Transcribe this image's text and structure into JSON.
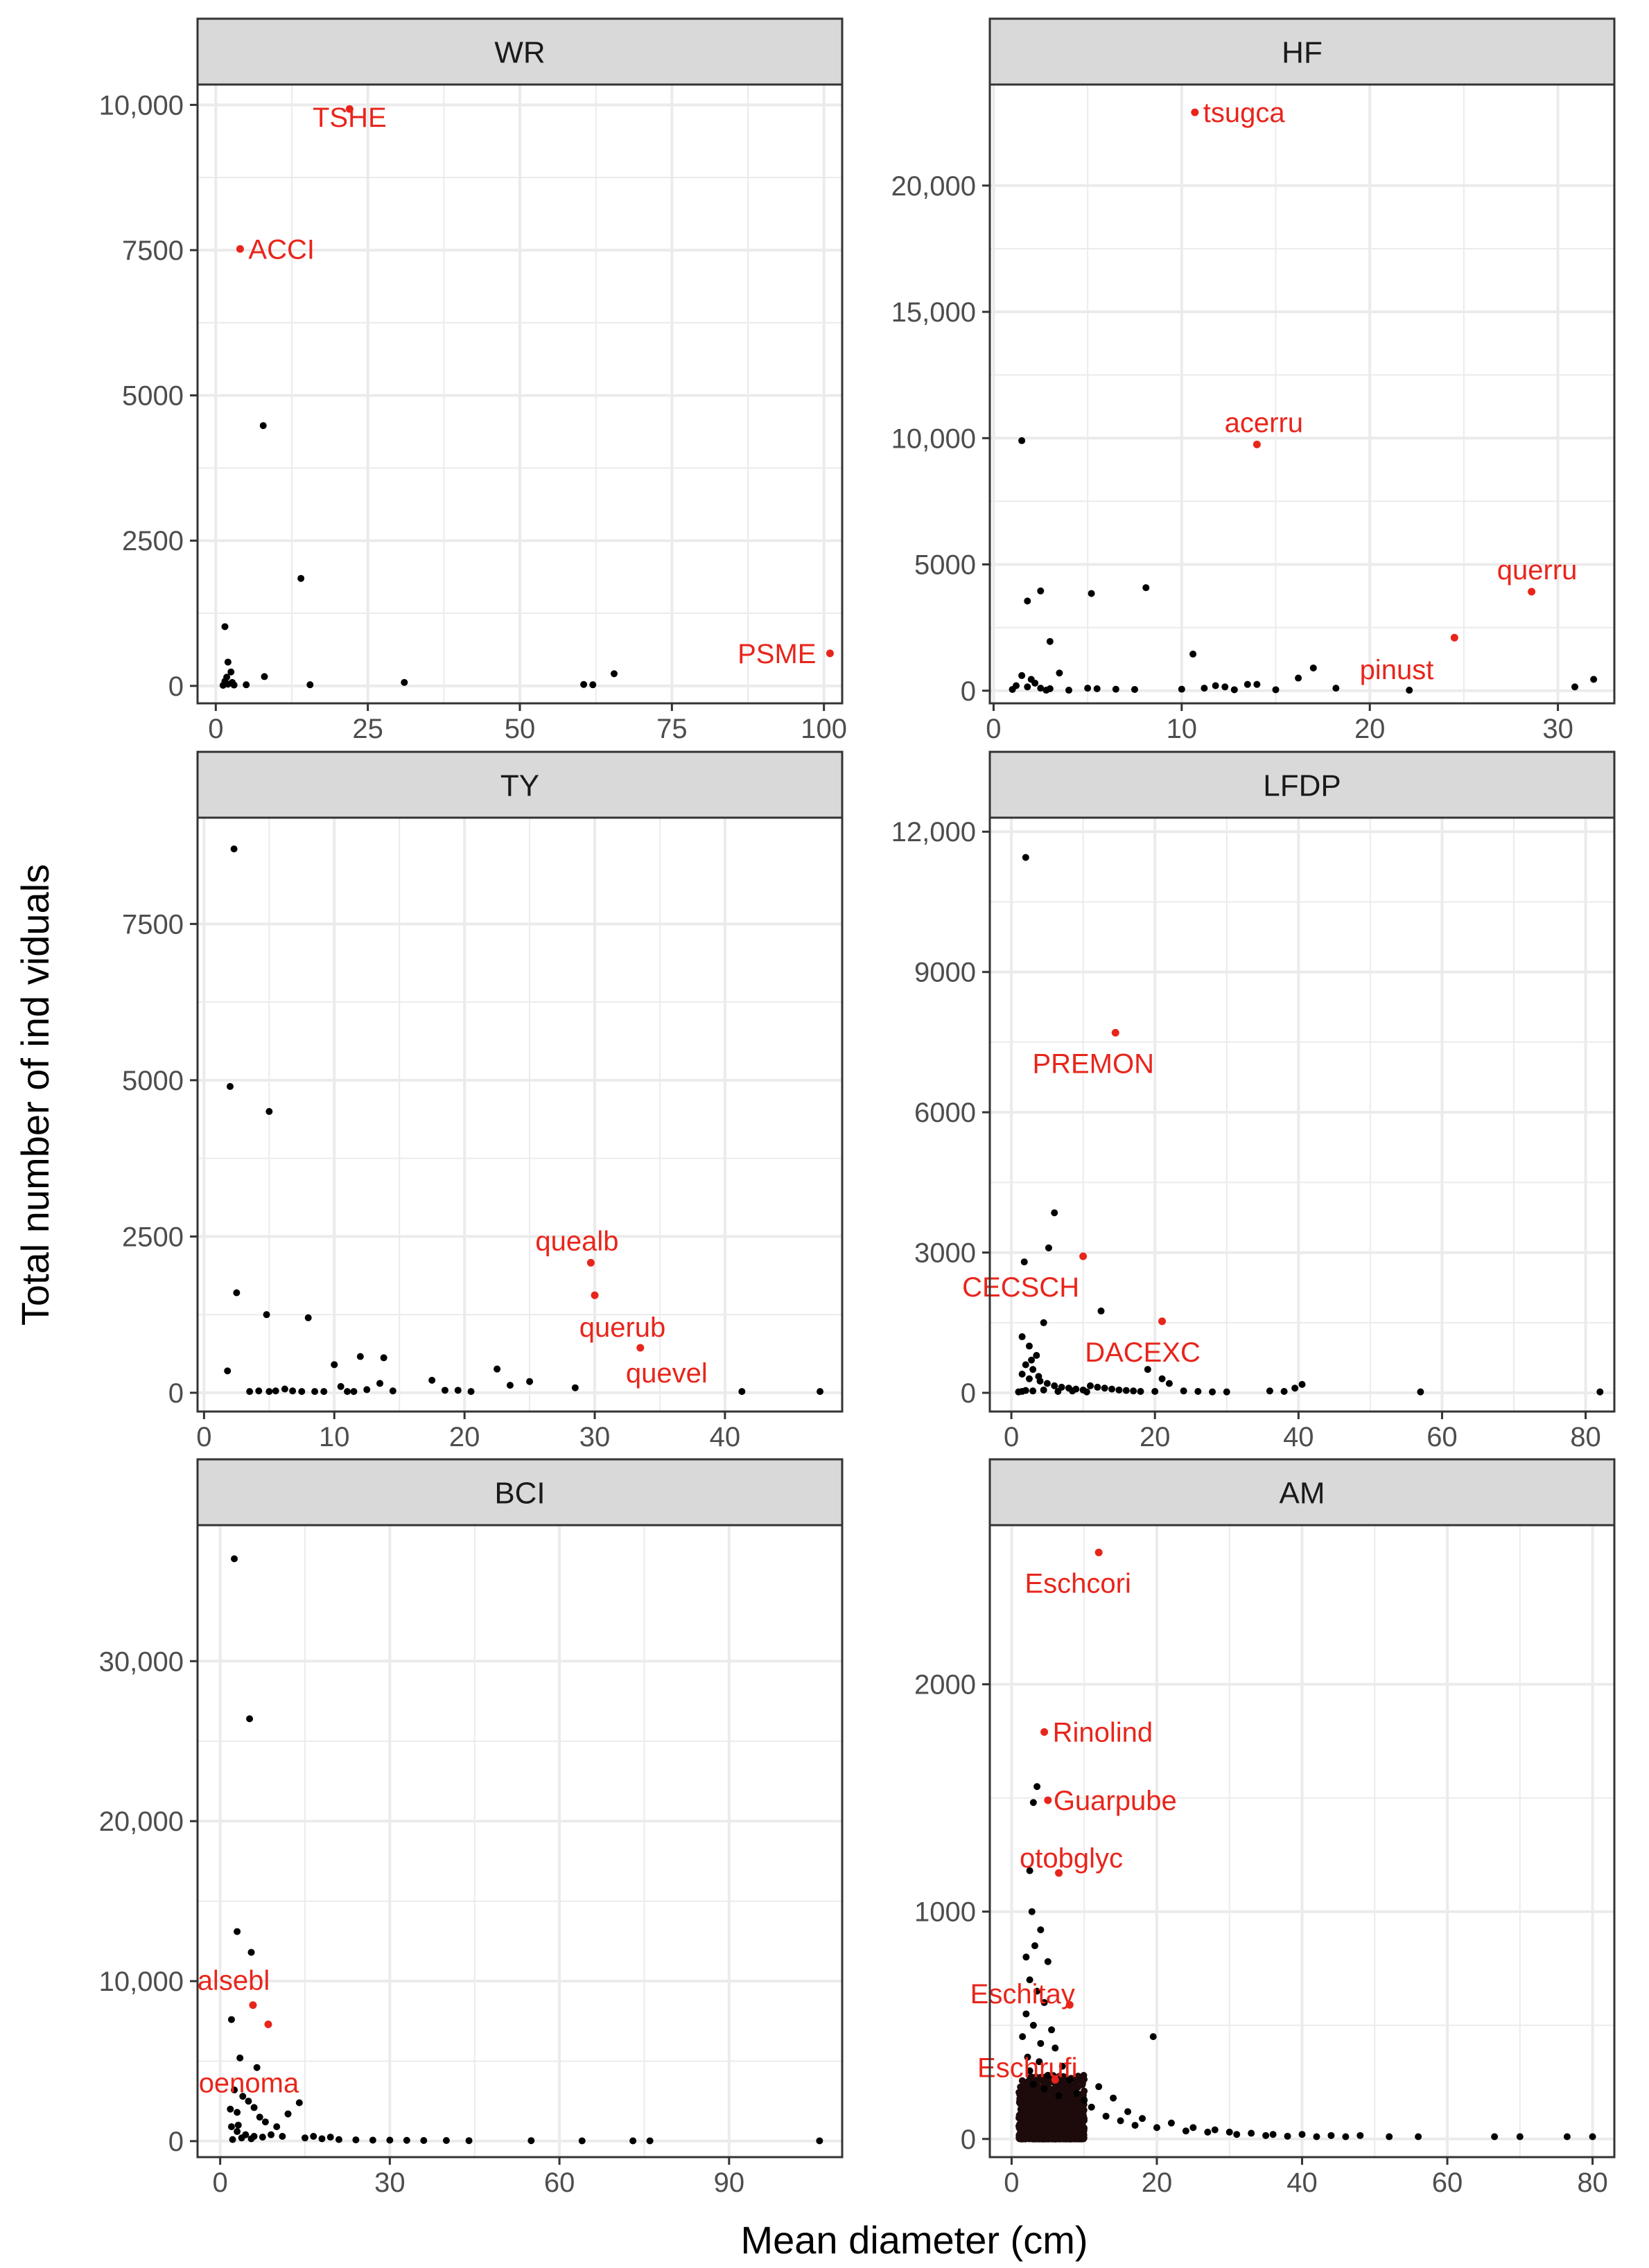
{
  "figure": {
    "xlabel": "Mean diameter (cm)",
    "ylabel": "Total number of ind viduals"
  },
  "colors": {
    "point": "#000000",
    "highlight": "#e8251b",
    "strip_fill": "#d9d9d9",
    "grid": "#ebebeb",
    "frame": "#333333"
  },
  "chart_data": [
    {
      "type": "scatter",
      "title": "WR",
      "xlim": [
        -3,
        103
      ],
      "ylim": [
        -300,
        10350
      ],
      "xticks": [
        0,
        25,
        50,
        75,
        100
      ],
      "xtick_labels": [
        "0",
        "25",
        "50",
        "75",
        "100"
      ],
      "yticks": [
        0,
        2500,
        5000,
        7500,
        10000
      ],
      "ytick_labels": [
        "0",
        "2500",
        "5000",
        "7500",
        "10,000"
      ],
      "points": [
        [
          1.5,
          1020
        ],
        [
          1.5,
          80
        ],
        [
          2.0,
          410
        ],
        [
          2.5,
          240
        ],
        [
          2.0,
          30
        ],
        [
          1.2,
          10
        ],
        [
          3.0,
          15
        ],
        [
          5.0,
          20
        ],
        [
          8.0,
          160
        ],
        [
          7.8,
          4480
        ],
        [
          14.0,
          1850
        ],
        [
          15.5,
          20
        ],
        [
          31.0,
          60
        ],
        [
          60.5,
          25
        ],
        [
          62.0,
          20
        ],
        [
          65.5,
          210
        ],
        [
          2.7,
          60
        ],
        [
          1.8,
          150
        ]
      ],
      "highlights": [
        {
          "label": "TSHE",
          "x": 22.0,
          "y": 9930,
          "anchor": "middle",
          "dy": 26
        },
        {
          "label": "ACCI",
          "x": 4.0,
          "y": 7520,
          "anchor": "start",
          "dx": 12,
          "dy": 14
        },
        {
          "label": "PSME",
          "x": 101.0,
          "y": 560,
          "anchor": "end",
          "dx": -20,
          "dy": 14
        }
      ]
    },
    {
      "type": "scatter",
      "title": "HF",
      "xlim": [
        -0.2,
        33
      ],
      "ylim": [
        -500,
        24000
      ],
      "xticks": [
        0,
        10,
        20,
        30
      ],
      "xtick_labels": [
        "0",
        "10",
        "20",
        "30"
      ],
      "yticks": [
        0,
        5000,
        10000,
        15000,
        20000
      ],
      "ytick_labels": [
        "0",
        "5000",
        "10,000",
        "15,000",
        "20,000"
      ],
      "points": [
        [
          1.5,
          9900
        ],
        [
          1.8,
          3550
        ],
        [
          2.5,
          3950
        ],
        [
          5.2,
          3850
        ],
        [
          8.1,
          4080
        ],
        [
          3.0,
          1950
        ],
        [
          10.6,
          1450
        ],
        [
          17.0,
          900
        ],
        [
          16.2,
          500
        ],
        [
          14.0,
          250
        ],
        [
          1.5,
          600
        ],
        [
          2.0,
          450
        ],
        [
          3.5,
          700
        ],
        [
          2.2,
          300
        ],
        [
          1.2,
          200
        ],
        [
          1.8,
          150
        ],
        [
          2.5,
          100
        ],
        [
          3.0,
          80
        ],
        [
          5.0,
          100
        ],
        [
          5.5,
          80
        ],
        [
          6.5,
          60
        ],
        [
          7.5,
          50
        ],
        [
          10.0,
          60
        ],
        [
          11.2,
          100
        ],
        [
          11.8,
          200
        ],
        [
          12.3,
          150
        ],
        [
          12.8,
          40
        ],
        [
          13.5,
          250
        ],
        [
          15.0,
          40
        ],
        [
          18.2,
          100
        ],
        [
          22.1,
          20
        ],
        [
          30.9,
          150
        ],
        [
          31.9,
          450
        ],
        [
          1.0,
          50
        ],
        [
          2.8,
          20
        ],
        [
          4.0,
          20
        ]
      ],
      "highlights": [
        {
          "label": "tsugca",
          "x": 10.7,
          "y": 22900,
          "anchor": "start",
          "dx": 12,
          "dy": 14
        },
        {
          "label": "acerru",
          "x": 14.0,
          "y": 9750,
          "anchor": "middle",
          "dx": 10,
          "dy": -18
        },
        {
          "label": "querru",
          "x": 28.6,
          "y": 3920,
          "anchor": "middle",
          "dx": 8,
          "dy": -18
        },
        {
          "label": "pinust",
          "x": 24.5,
          "y": 2100,
          "anchor": "end",
          "dx": -30,
          "dy": 60
        }
      ]
    },
    {
      "type": "scatter",
      "title": "TY",
      "xlim": [
        -0.5,
        49
      ],
      "ylim": [
        -300,
        9200
      ],
      "xticks": [
        0,
        10,
        20,
        30,
        40
      ],
      "xtick_labels": [
        "0",
        "10",
        "20",
        "30",
        "40"
      ],
      "yticks": [
        0,
        2500,
        5000,
        7500
      ],
      "ytick_labels": [
        "0",
        "2500",
        "5000",
        "7500"
      ],
      "points": [
        [
          2.3,
          8700
        ],
        [
          2.0,
          4900
        ],
        [
          5.0,
          4500
        ],
        [
          2.5,
          1600
        ],
        [
          4.8,
          1250
        ],
        [
          8.0,
          1200
        ],
        [
          1.8,
          350
        ],
        [
          3.5,
          20
        ],
        [
          5.0,
          20
        ],
        [
          5.5,
          30
        ],
        [
          6.2,
          60
        ],
        [
          6.8,
          30
        ],
        [
          7.5,
          20
        ],
        [
          8.5,
          20
        ],
        [
          9.2,
          20
        ],
        [
          10.0,
          450
        ],
        [
          10.5,
          100
        ],
        [
          11.5,
          20
        ],
        [
          12.0,
          580
        ],
        [
          12.5,
          50
        ],
        [
          13.5,
          150
        ],
        [
          13.8,
          560
        ],
        [
          14.5,
          30
        ],
        [
          17.5,
          200
        ],
        [
          18.5,
          40
        ],
        [
          19.5,
          40
        ],
        [
          20.5,
          20
        ],
        [
          22.5,
          380
        ],
        [
          23.5,
          120
        ],
        [
          25.0,
          180
        ],
        [
          28.5,
          80
        ],
        [
          41.3,
          20
        ],
        [
          47.3,
          20
        ],
        [
          11.0,
          20
        ],
        [
          4.2,
          30
        ]
      ],
      "highlights": [
        {
          "label": "quealb",
          "x": 29.7,
          "y": 2080,
          "anchor": "middle",
          "dx": -20,
          "dy": -18
        },
        {
          "label": "querub",
          "x": 30.0,
          "y": 1560,
          "anchor": "middle",
          "dx": 40,
          "dy": 60
        },
        {
          "label": "quevel",
          "x": 33.5,
          "y": 720,
          "anchor": "middle",
          "dx": 38,
          "dy": 50
        }
      ]
    },
    {
      "type": "scatter",
      "title": "LFDP",
      "xlim": [
        -3,
        84
      ],
      "ylim": [
        -400,
        12300
      ],
      "xticks": [
        0,
        20,
        40,
        60,
        80
      ],
      "xtick_labels": [
        "0",
        "20",
        "40",
        "60",
        "80"
      ],
      "yticks": [
        0,
        3000,
        6000,
        9000,
        12000
      ],
      "ytick_labels": [
        "0",
        "3000",
        "6000",
        "9000",
        "12,000"
      ],
      "points": [
        [
          2.0,
          11450
        ],
        [
          6.0,
          3850
        ],
        [
          5.2,
          3100
        ],
        [
          1.8,
          2800
        ],
        [
          12.5,
          1750
        ],
        [
          4.5,
          1500
        ],
        [
          1.5,
          1200
        ],
        [
          2.5,
          1000
        ],
        [
          3.5,
          800
        ],
        [
          2.0,
          600
        ],
        [
          3.0,
          500
        ],
        [
          1.5,
          400
        ],
        [
          2.5,
          300
        ],
        [
          4.0,
          250
        ],
        [
          5.0,
          200
        ],
        [
          6.0,
          150
        ],
        [
          7.0,
          120
        ],
        [
          8.0,
          100
        ],
        [
          9.0,
          80
        ],
        [
          10.0,
          60
        ],
        [
          11.0,
          150
        ],
        [
          12.0,
          120
        ],
        [
          13.0,
          100
        ],
        [
          14.0,
          80
        ],
        [
          15.0,
          60
        ],
        [
          16.0,
          50
        ],
        [
          17.0,
          40
        ],
        [
          18.0,
          30
        ],
        [
          19.0,
          500
        ],
        [
          20.0,
          30
        ],
        [
          21.0,
          300
        ],
        [
          22.0,
          200
        ],
        [
          24.0,
          40
        ],
        [
          26.0,
          30
        ],
        [
          28.0,
          20
        ],
        [
          30.0,
          20
        ],
        [
          36.0,
          40
        ],
        [
          38.0,
          30
        ],
        [
          39.5,
          100
        ],
        [
          40.5,
          180
        ],
        [
          57.0,
          20
        ],
        [
          82.0,
          20
        ],
        [
          1.0,
          20
        ],
        [
          1.5,
          30
        ],
        [
          2.0,
          50
        ],
        [
          3.0,
          40
        ],
        [
          4.5,
          60
        ],
        [
          6.5,
          30
        ],
        [
          8.5,
          40
        ],
        [
          10.5,
          20
        ],
        [
          2.8,
          700
        ],
        [
          3.8,
          350
        ]
      ],
      "highlights": [
        {
          "label": "PREMON",
          "x": 14.5,
          "y": 7700,
          "anchor": "middle",
          "dx": -32,
          "dy": 58
        },
        {
          "label": "CECSCH",
          "x": 10.0,
          "y": 2920,
          "anchor": "middle",
          "dx": -90,
          "dy": 58
        },
        {
          "label": "DACEXC",
          "x": 21.0,
          "y": 1530,
          "anchor": "middle",
          "dx": -28,
          "dy": 58
        }
      ]
    },
    {
      "type": "scatter",
      "title": "BCI",
      "xlim": [
        -4,
        110
      ],
      "ylim": [
        -1000,
        38500
      ],
      "xticks": [
        0,
        30,
        60,
        90
      ],
      "xtick_labels": [
        "0",
        "30",
        "60",
        "90"
      ],
      "yticks": [
        0,
        10000,
        20000,
        30000
      ],
      "ytick_labels": [
        "0",
        "10,000",
        "20,000",
        "30,000"
      ],
      "points": [
        [
          2.5,
          36400
        ],
        [
          5.2,
          26400
        ],
        [
          3.0,
          13100
        ],
        [
          5.5,
          11800
        ],
        [
          2.0,
          7600
        ],
        [
          3.5,
          5200
        ],
        [
          6.5,
          4600
        ],
        [
          2.5,
          3200
        ],
        [
          4.0,
          2800
        ],
        [
          5.0,
          2500
        ],
        [
          6.0,
          2100
        ],
        [
          3.0,
          1800
        ],
        [
          7.0,
          1500
        ],
        [
          8.0,
          1200
        ],
        [
          10.0,
          900
        ],
        [
          12.0,
          1700
        ],
        [
          14.0,
          2400
        ],
        [
          2.0,
          900
        ],
        [
          3.0,
          600
        ],
        [
          4.5,
          400
        ],
        [
          6.0,
          300
        ],
        [
          9.0,
          400
        ],
        [
          11.0,
          300
        ],
        [
          15.0,
          200
        ],
        [
          18.0,
          150
        ],
        [
          21.0,
          100
        ],
        [
          24.0,
          80
        ],
        [
          27.0,
          60
        ],
        [
          30.0,
          60
        ],
        [
          33.0,
          50
        ],
        [
          36.0,
          40
        ],
        [
          40.0,
          40
        ],
        [
          44.0,
          30
        ],
        [
          55.0,
          30
        ],
        [
          64.0,
          20
        ],
        [
          73.0,
          20
        ],
        [
          76.0,
          20
        ],
        [
          106.0,
          20
        ],
        [
          2.2,
          100
        ],
        [
          3.8,
          200
        ],
        [
          5.5,
          150
        ],
        [
          7.5,
          250
        ],
        [
          1.8,
          2000
        ],
        [
          3.2,
          1000
        ],
        [
          16.5,
          300
        ],
        [
          19.5,
          250
        ]
      ],
      "highlights": [
        {
          "label": "alsebl",
          "x": 5.8,
          "y": 8500,
          "anchor": "middle",
          "dx": -28,
          "dy": -22
        },
        {
          "label": "oenoma",
          "x": 8.5,
          "y": 7300,
          "anchor": "middle",
          "dx": -28,
          "dy": 98
        }
      ]
    },
    {
      "type": "scatter",
      "title": "AM",
      "xlim": [
        -3,
        83
      ],
      "ylim": [
        -80,
        2700
      ],
      "xticks": [
        0,
        20,
        40,
        60,
        80
      ],
      "xtick_labels": [
        "0",
        "20",
        "40",
        "60",
        "80"
      ],
      "yticks": [
        0,
        1000,
        2000
      ],
      "ytick_labels": [
        "0",
        "1000",
        "2000"
      ],
      "points": [
        [
          3.5,
          1550
        ],
        [
          3.0,
          1480
        ],
        [
          2.5,
          1180
        ],
        [
          2.8,
          1000
        ],
        [
          4.0,
          920
        ],
        [
          3.2,
          850
        ],
        [
          2.0,
          800
        ],
        [
          5.0,
          780
        ],
        [
          2.5,
          700
        ],
        [
          3.5,
          650
        ],
        [
          4.5,
          600
        ],
        [
          2.0,
          550
        ],
        [
          3.0,
          500
        ],
        [
          5.5,
          480
        ],
        [
          1.5,
          450
        ],
        [
          4.0,
          420
        ],
        [
          6.0,
          400
        ],
        [
          2.2,
          360
        ],
        [
          3.8,
          340
        ],
        [
          7.0,
          320
        ],
        [
          2.5,
          300
        ],
        [
          5.0,
          280
        ],
        [
          8.0,
          260
        ],
        [
          3.0,
          240
        ],
        [
          4.5,
          220
        ],
        [
          9.0,
          200
        ],
        [
          6.5,
          190
        ],
        [
          10.0,
          170
        ],
        [
          12.0,
          230
        ],
        [
          14.0,
          180
        ],
        [
          19.5,
          450
        ],
        [
          16.0,
          120
        ],
        [
          18.0,
          90
        ],
        [
          22.0,
          70
        ],
        [
          25.0,
          50
        ],
        [
          28.0,
          40
        ],
        [
          30.0,
          30
        ],
        [
          33.0,
          25
        ],
        [
          36.0,
          20
        ],
        [
          40.0,
          20
        ],
        [
          44.0,
          15
        ],
        [
          48.0,
          15
        ],
        [
          52.0,
          10
        ],
        [
          56.0,
          10
        ],
        [
          66.5,
          10
        ],
        [
          70.0,
          10
        ],
        [
          76.5,
          10
        ],
        [
          80.0,
          10
        ],
        [
          11.0,
          140
        ],
        [
          13.0,
          100
        ],
        [
          15.0,
          80
        ],
        [
          17.0,
          60
        ],
        [
          20.0,
          50
        ],
        [
          24.0,
          35
        ],
        [
          27.0,
          30
        ],
        [
          31.0,
          20
        ],
        [
          35.0,
          15
        ],
        [
          38.0,
          12
        ],
        [
          42.0,
          10
        ],
        [
          46.0,
          10
        ]
      ],
      "cluster": {
        "x": [
          1.0,
          10.0
        ],
        "y": [
          0,
          280
        ]
      },
      "highlights": [
        {
          "label": "Eschcori",
          "x": 12.0,
          "y": 2580,
          "anchor": "middle",
          "dx": -30,
          "dy": 58
        },
        {
          "label": "Rinolind",
          "x": 4.5,
          "y": 1790,
          "anchor": "start",
          "dx": 12,
          "dy": 14
        },
        {
          "label": "Guarpube",
          "x": 5.0,
          "y": 1490,
          "anchor": "start",
          "dx": 8,
          "dy": 14
        },
        {
          "label": "otobglyc",
          "x": 6.5,
          "y": 1170,
          "anchor": "middle",
          "dx": 18,
          "dy": -8
        },
        {
          "label": "Eschitay",
          "x": 8.0,
          "y": 590,
          "anchor": "middle",
          "dx": -68,
          "dy": -2
        },
        {
          "label": "Eschrufi",
          "x": 6.0,
          "y": 260,
          "anchor": "middle",
          "dx": -40,
          "dy": -4
        }
      ]
    }
  ]
}
